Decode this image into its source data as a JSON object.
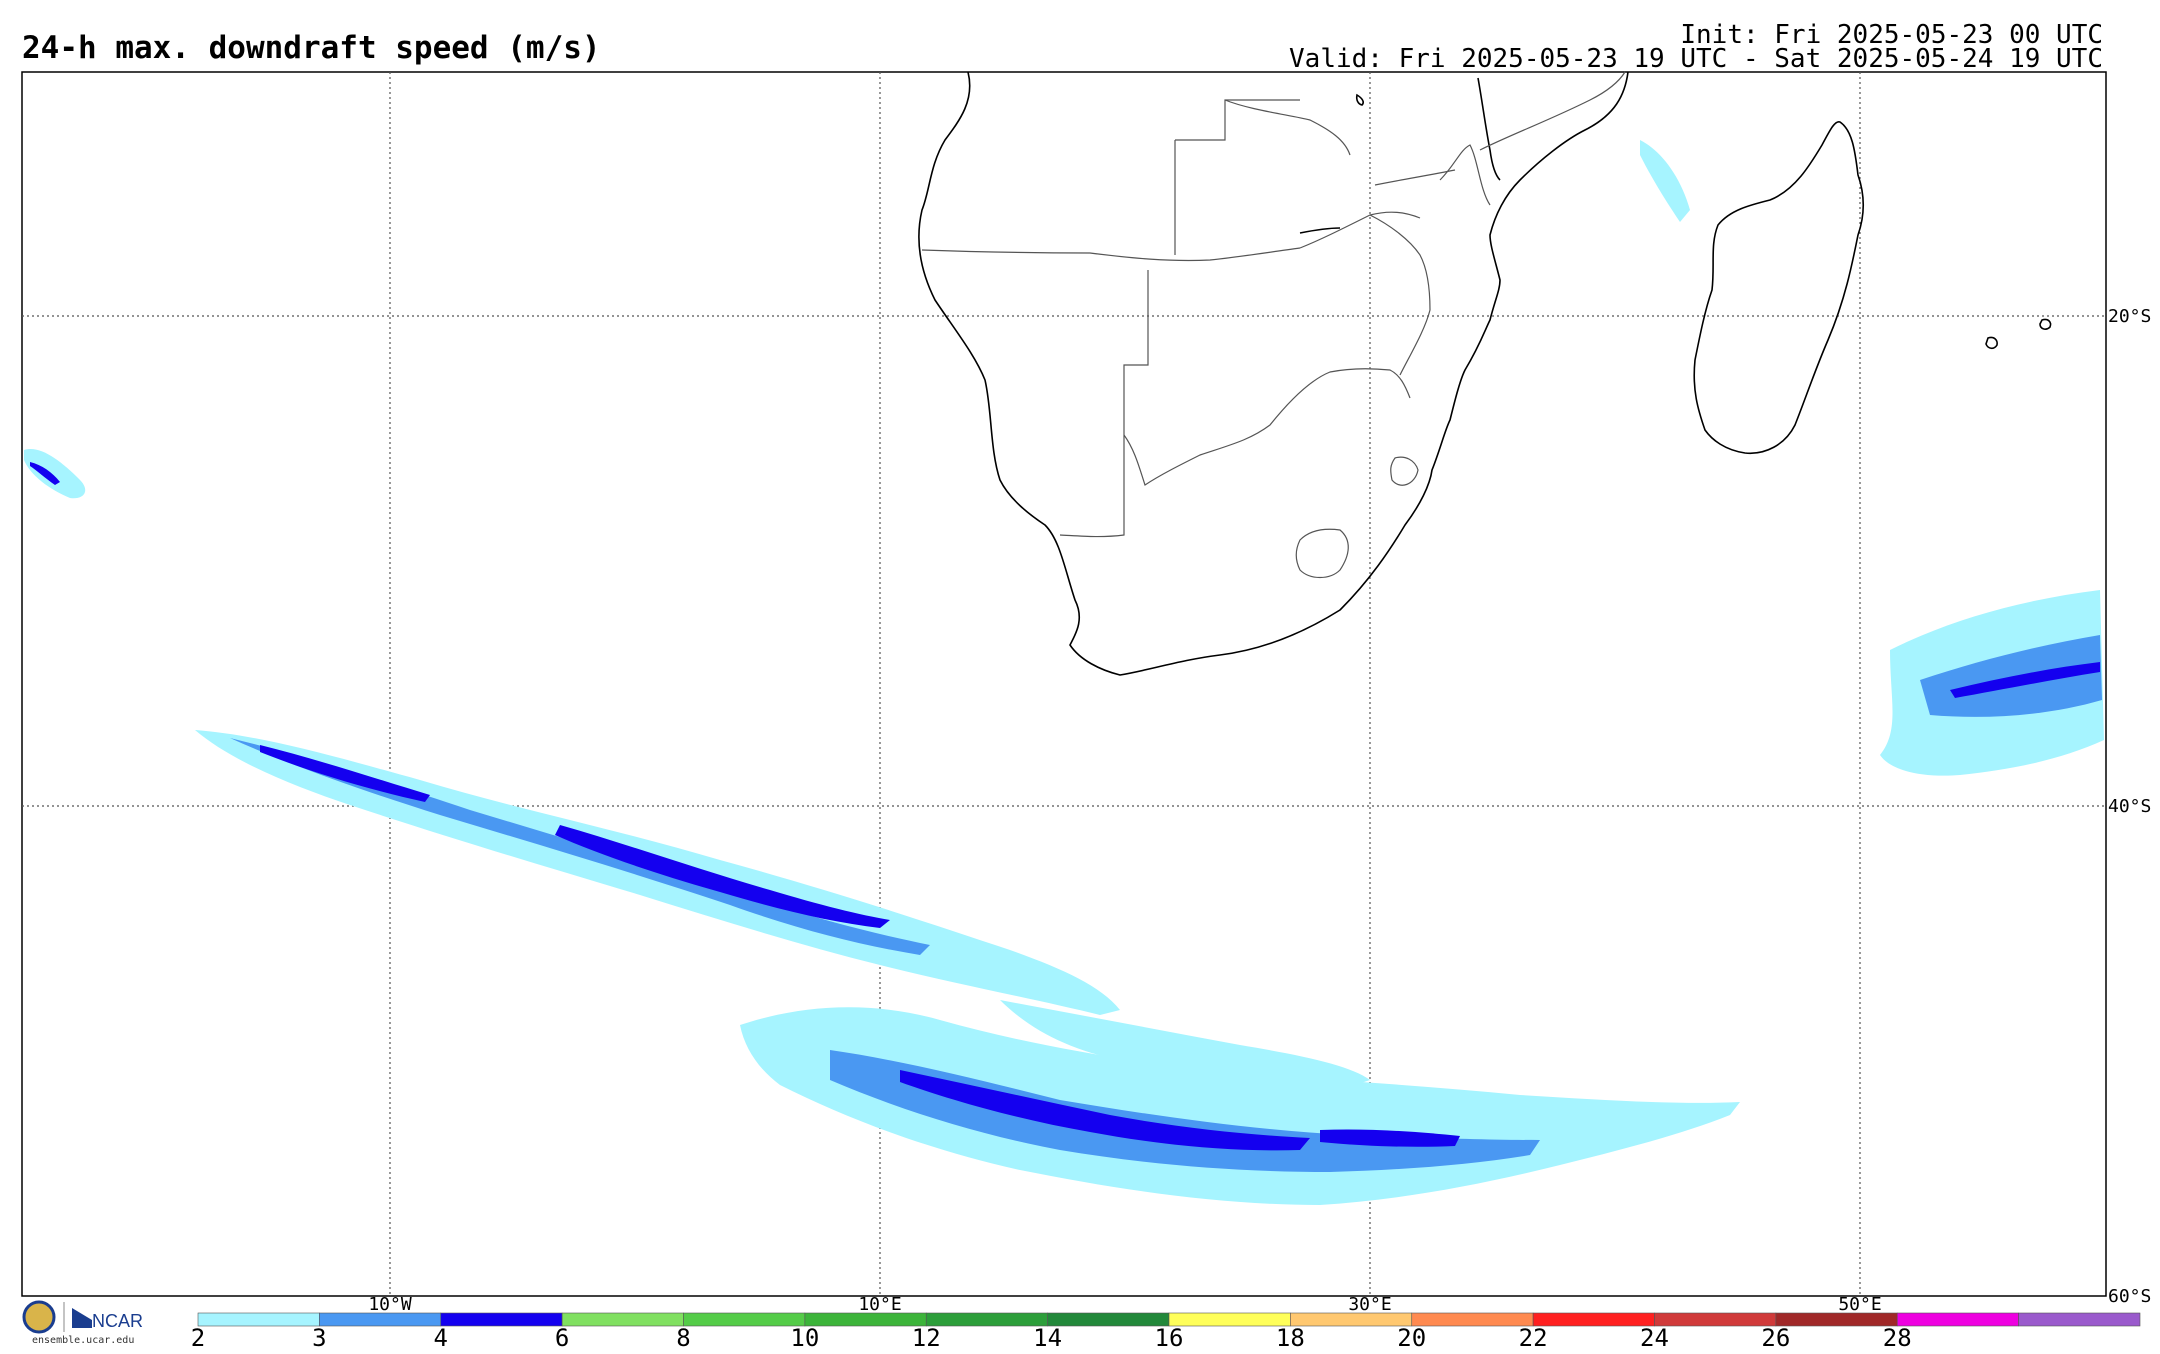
{
  "header": {
    "title": "24-h max. downdraft speed (m/s)",
    "init": "Init: Fri 2025-05-23 00 UTC",
    "valid": "Valid: Fri 2025-05-23 19 UTC - Sat 2025-05-24 19 UTC"
  },
  "map": {
    "lon_labels": [
      "10°W",
      "10°E",
      "30°E",
      "50°E"
    ],
    "lat_labels": [
      "20°S",
      "40°S",
      "60°S"
    ],
    "gridline_style": "dotted"
  },
  "colorbar": {
    "ticks": [
      "2",
      "3",
      "4",
      "6",
      "8",
      "10",
      "12",
      "14",
      "16",
      "18",
      "20",
      "22",
      "24",
      "26",
      "28"
    ],
    "colors": [
      "#a6f4ff",
      "#4a98f2",
      "#1400ef",
      "#80e060",
      "#54cc48",
      "#3cb43a",
      "#2c9e3a",
      "#22883a",
      "#ffff5a",
      "#ffc870",
      "#ff8a50",
      "#ff2020",
      "#d03a3a",
      "#a02828",
      "#ee00e0",
      "#9a5acc"
    ]
  },
  "branding": {
    "logo_text": "NCAR",
    "url": "ensemble.ucar.edu"
  }
}
